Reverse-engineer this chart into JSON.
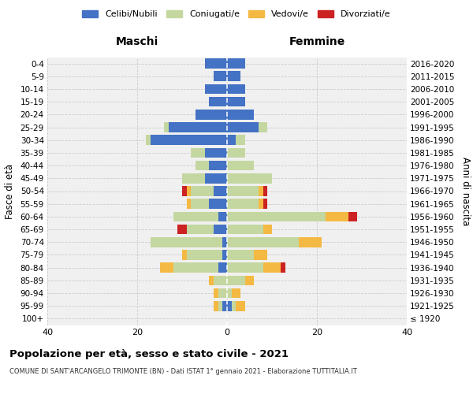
{
  "age_groups": [
    "100+",
    "95-99",
    "90-94",
    "85-89",
    "80-84",
    "75-79",
    "70-74",
    "65-69",
    "60-64",
    "55-59",
    "50-54",
    "45-49",
    "40-44",
    "35-39",
    "30-34",
    "25-29",
    "20-24",
    "15-19",
    "10-14",
    "5-9",
    "0-4"
  ],
  "birth_years": [
    "≤ 1920",
    "1921-1925",
    "1926-1930",
    "1931-1935",
    "1936-1940",
    "1941-1945",
    "1946-1950",
    "1951-1955",
    "1956-1960",
    "1961-1965",
    "1966-1970",
    "1971-1975",
    "1976-1980",
    "1981-1985",
    "1986-1990",
    "1991-1995",
    "1996-2000",
    "2001-2005",
    "2006-2010",
    "2011-2015",
    "2016-2020"
  ],
  "colors": {
    "celibe": "#4472C4",
    "coniugato": "#C5D7A0",
    "vedovo": "#F4B942",
    "divorziato": "#CC2222"
  },
  "maschi": {
    "celibe": [
      0,
      1,
      0,
      0,
      2,
      1,
      1,
      3,
      2,
      4,
      3,
      5,
      4,
      5,
      17,
      13,
      7,
      4,
      5,
      3,
      5
    ],
    "coniugato": [
      0,
      1,
      2,
      3,
      10,
      8,
      16,
      6,
      10,
      4,
      5,
      5,
      3,
      3,
      1,
      1,
      0,
      0,
      0,
      0,
      0
    ],
    "vedovo": [
      0,
      1,
      1,
      1,
      3,
      1,
      0,
      0,
      0,
      1,
      1,
      0,
      0,
      0,
      0,
      0,
      0,
      0,
      0,
      0,
      0
    ],
    "divorziato": [
      0,
      0,
      0,
      0,
      0,
      0,
      0,
      2,
      0,
      0,
      1,
      0,
      0,
      0,
      0,
      0,
      0,
      0,
      0,
      0,
      0
    ]
  },
  "femmine": {
    "nubile": [
      0,
      1,
      0,
      0,
      0,
      0,
      0,
      0,
      0,
      0,
      0,
      0,
      0,
      0,
      2,
      7,
      6,
      4,
      4,
      3,
      4
    ],
    "coniugata": [
      0,
      1,
      1,
      4,
      8,
      6,
      16,
      8,
      22,
      7,
      7,
      10,
      6,
      4,
      2,
      2,
      0,
      0,
      0,
      0,
      0
    ],
    "vedova": [
      0,
      2,
      2,
      2,
      4,
      3,
      5,
      2,
      5,
      1,
      1,
      0,
      0,
      0,
      0,
      0,
      0,
      0,
      0,
      0,
      0
    ],
    "divorziata": [
      0,
      0,
      0,
      0,
      1,
      0,
      0,
      0,
      2,
      1,
      1,
      0,
      0,
      0,
      0,
      0,
      0,
      0,
      0,
      0,
      0
    ]
  },
  "title": "Popolazione per età, sesso e stato civile - 2021",
  "subtitle": "COMUNE DI SANT'ARCANGELO TRIMONTE (BN) - Dati ISTAT 1° gennaio 2021 - Elaborazione TUTTITALIA.IT",
  "xlabel_left": "Maschi",
  "xlabel_right": "Femmine",
  "ylabel_left": "Fasce di età",
  "ylabel_right": "Anni di nascita",
  "xlim": 40,
  "legend_labels": [
    "Celibi/Nubili",
    "Coniugati/e",
    "Vedovi/e",
    "Divorziati/e"
  ],
  "bg_color": "#f0f0f0",
  "grid_color": "#cccccc"
}
